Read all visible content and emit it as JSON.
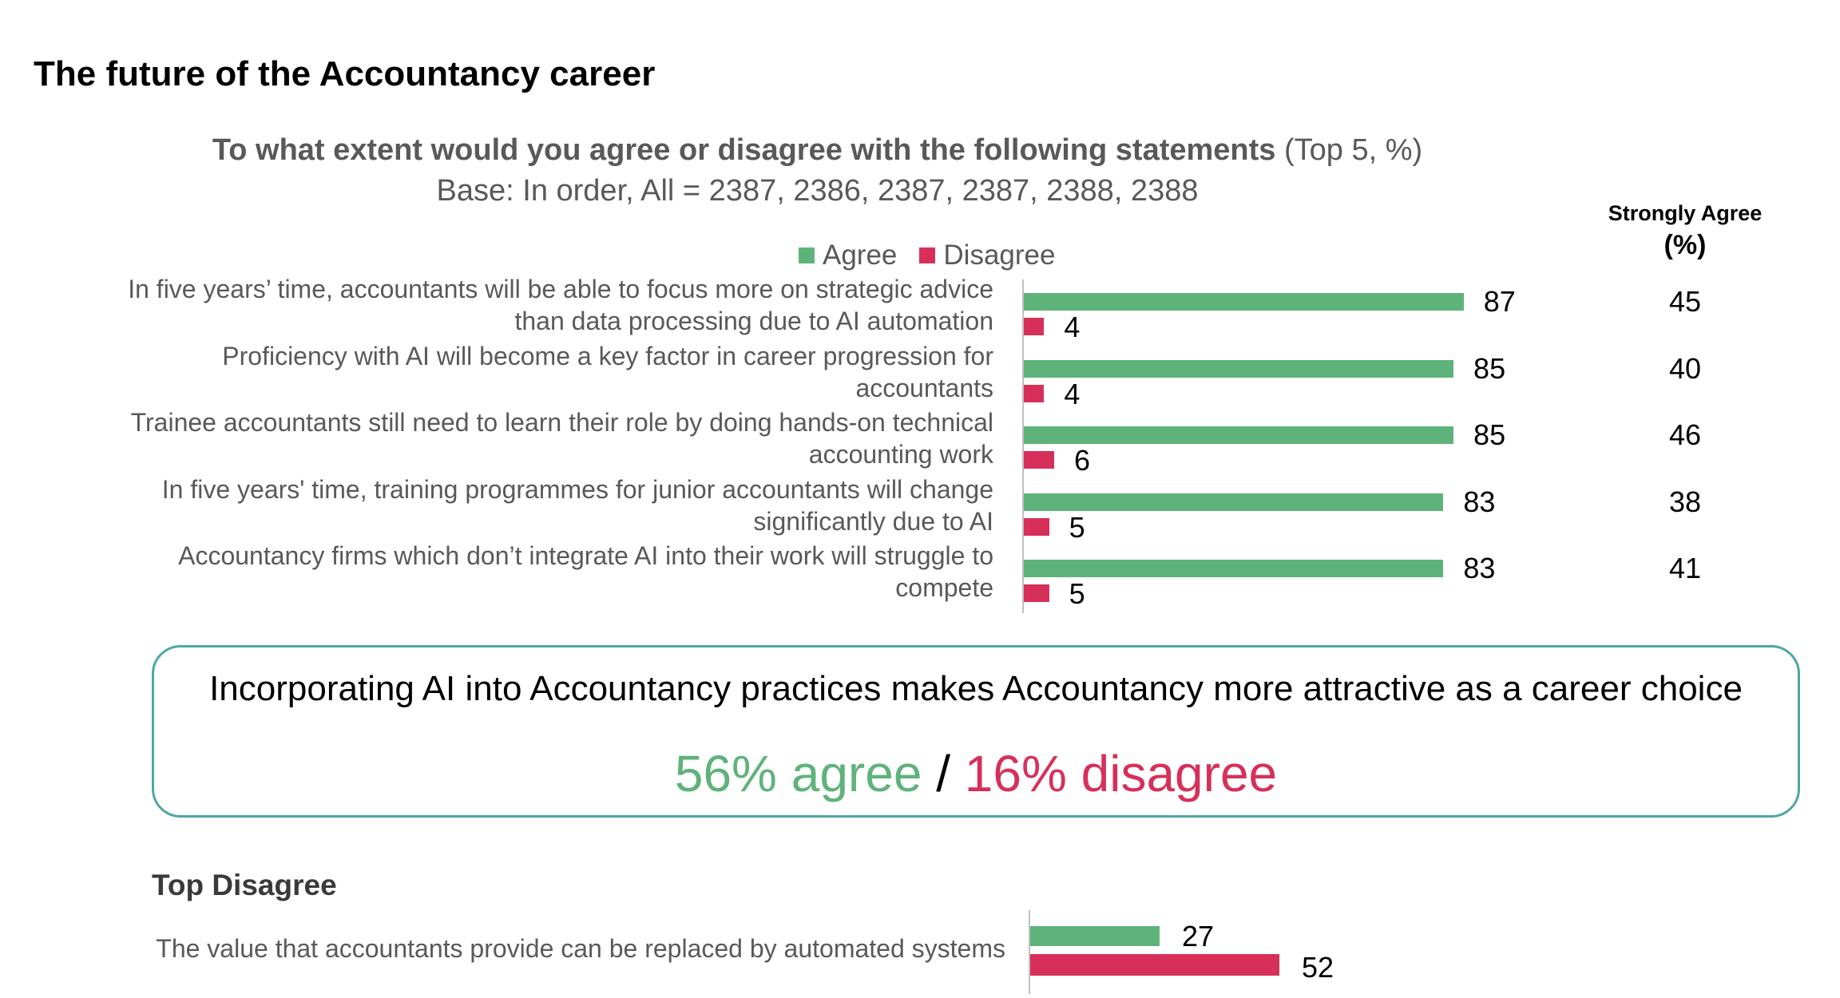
{
  "page_title": "The future of the Accountancy career",
  "question_bold": "To what extent would you agree or disagree with the following statements",
  "question_suffix": "(Top 5, %)",
  "base_text": "Base: In order, All = 2387, 2386, 2387, 2387, 2388, 2388",
  "strongly_agree_header": "Strongly Agree",
  "strongly_agree_unit": "(%)",
  "colors": {
    "agree": "#5eb37a",
    "disagree": "#d6305a",
    "callout_border": "#4fa6a4"
  },
  "chart_data": [
    {
      "type": "bar",
      "orientation": "horizontal",
      "title": "To what extent would you agree or disagree with the following statements (Top 5, %)",
      "legend": [
        "Agree",
        "Disagree"
      ],
      "legend_position": "top",
      "categories": [
        "In five years’ time, accountants will be able to focus more on strategic advice than data processing due to AI automation",
        "Proficiency with AI will become a key factor in career progression for accountants",
        "Trainee accountants still need to learn their role by doing hands-on technical accounting work",
        "In five years' time, training programmes for junior accountants will change significantly due to AI",
        "Accountancy firms which don’t integrate AI into their work will struggle to compete"
      ],
      "series": [
        {
          "name": "Agree",
          "values": [
            87,
            85,
            85,
            83,
            83
          ]
        },
        {
          "name": "Disagree",
          "values": [
            4,
            4,
            6,
            5,
            5
          ]
        }
      ],
      "strongly_agree": [
        45,
        40,
        46,
        38,
        41
      ],
      "xlim": [
        0,
        100
      ],
      "grid": false
    },
    {
      "type": "bar",
      "orientation": "horizontal",
      "title": "Top Disagree",
      "categories": [
        "The value that accountants provide can be replaced by automated systems"
      ],
      "series": [
        {
          "name": "Agree",
          "values": [
            27
          ]
        },
        {
          "name": "Disagree",
          "values": [
            52
          ]
        }
      ],
      "xlim": [
        0,
        100
      ],
      "grid": false
    }
  ],
  "callout": {
    "statement": "Incorporating AI into Accountancy practices makes Accountancy more attractive as a career choice",
    "agree_text": "56% agree",
    "separator": " / ",
    "disagree_text": "16% disagree"
  }
}
